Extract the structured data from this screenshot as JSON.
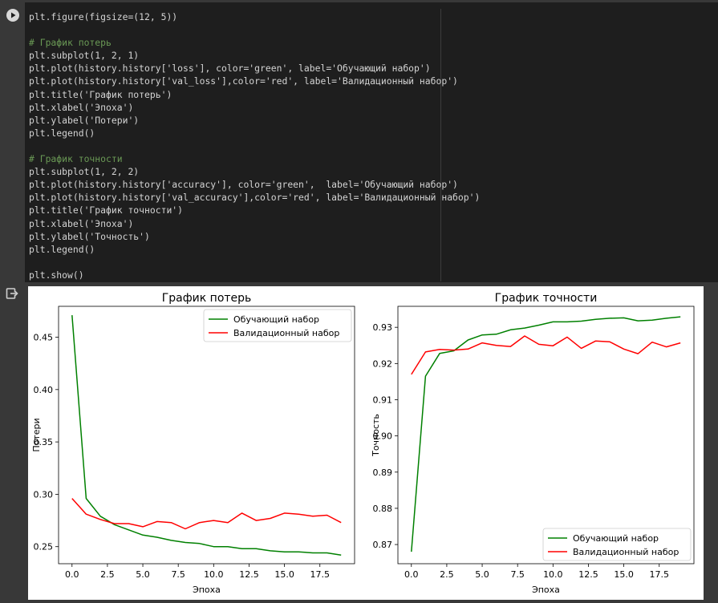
{
  "code": {
    "lines": [
      "plt.figure(figsize=(12, 5))",
      "",
      "# График потерь",
      "plt.subplot(1, 2, 1)",
      "plt.plot(history.history['loss'], color='green', label='Обучающий набор')",
      "plt.plot(history.history['val_loss'],color='red', label='Валидационный набор')",
      "plt.title('График потерь')",
      "plt.xlabel('Эпоха')",
      "plt.ylabel('Потери')",
      "plt.legend()",
      "",
      "# График точности",
      "plt.subplot(1, 2, 2)",
      "plt.plot(history.history['accuracy'], color='green',  label='Обучающий набор')",
      "plt.plot(history.history['val_accuracy'],color='red', label='Валидационный набор')",
      "plt.title('График точности')",
      "plt.xlabel('Эпоха')",
      "plt.ylabel('Точность')",
      "plt.legend()",
      "",
      "plt.show()"
    ]
  },
  "icons": {
    "run": "play-circle-icon",
    "output": "output-exit-icon"
  },
  "chart_data": [
    {
      "type": "line",
      "title": "График потерь",
      "xlabel": "Эпоха",
      "ylabel": "Потери",
      "xlim": [
        -0.95,
        19.95
      ],
      "ylim": [
        0.2337,
        0.4795
      ],
      "xticks": [
        0,
        2.5,
        5,
        7.5,
        10,
        12.5,
        15,
        17.5
      ],
      "xtick_labels": [
        "0.0",
        "2.5",
        "5.0",
        "7.5",
        "10.0",
        "12.5",
        "15.0",
        "17.5"
      ],
      "yticks": [
        0.25,
        0.3,
        0.35,
        0.4,
        0.45
      ],
      "ytick_labels": [
        "0.25",
        "0.30",
        "0.35",
        "0.40",
        "0.45"
      ],
      "legend_position": "upper right",
      "x": [
        0,
        1,
        2,
        3,
        4,
        5,
        6,
        7,
        8,
        9,
        10,
        11,
        12,
        13,
        14,
        15,
        16,
        17,
        18,
        19
      ],
      "series": [
        {
          "name": "Обучающий набор",
          "color": "#008000",
          "values": [
            0.471,
            0.296,
            0.279,
            0.271,
            0.266,
            0.261,
            0.259,
            0.256,
            0.254,
            0.253,
            0.25,
            0.25,
            0.248,
            0.248,
            0.246,
            0.245,
            0.245,
            0.244,
            0.244,
            0.242
          ]
        },
        {
          "name": "Валидационный набор",
          "color": "#ff0000",
          "values": [
            0.296,
            0.281,
            0.276,
            0.272,
            0.272,
            0.269,
            0.274,
            0.273,
            0.267,
            0.273,
            0.275,
            0.273,
            0.282,
            0.275,
            0.277,
            0.282,
            0.281,
            0.279,
            0.28,
            0.273
          ]
        }
      ]
    },
    {
      "type": "line",
      "title": "График точности",
      "xlabel": "Эпоха",
      "ylabel": "Точность",
      "xlim": [
        -0.95,
        19.95
      ],
      "ylim": [
        0.8647,
        0.9358
      ],
      "xticks": [
        0,
        2.5,
        5,
        7.5,
        10,
        12.5,
        15,
        17.5
      ],
      "xtick_labels": [
        "0.0",
        "2.5",
        "5.0",
        "7.5",
        "10.0",
        "12.5",
        "15.0",
        "17.5"
      ],
      "yticks": [
        0.87,
        0.88,
        0.89,
        0.9,
        0.91,
        0.92,
        0.93
      ],
      "ytick_labels": [
        "0.87",
        "0.88",
        "0.89",
        "0.90",
        "0.91",
        "0.92",
        "0.93"
      ],
      "legend_position": "lower right",
      "x": [
        0,
        1,
        2,
        3,
        4,
        5,
        6,
        7,
        8,
        9,
        10,
        11,
        12,
        13,
        14,
        15,
        16,
        17,
        18,
        19
      ],
      "series": [
        {
          "name": "Обучающий набор",
          "color": "#008000",
          "values": [
            0.868,
            0.9165,
            0.9228,
            0.9235,
            0.9265,
            0.9279,
            0.9281,
            0.9293,
            0.9298,
            0.9306,
            0.9315,
            0.9315,
            0.9317,
            0.9322,
            0.9325,
            0.9326,
            0.9318,
            0.932,
            0.9325,
            0.9329
          ]
        },
        {
          "name": "Валидационный набор",
          "color": "#ff0000",
          "values": [
            0.917,
            0.9232,
            0.9239,
            0.9237,
            0.924,
            0.9257,
            0.925,
            0.9247,
            0.9276,
            0.9253,
            0.9249,
            0.9273,
            0.9242,
            0.9262,
            0.926,
            0.924,
            0.9227,
            0.9259,
            0.9246,
            0.9257
          ]
        }
      ]
    }
  ]
}
